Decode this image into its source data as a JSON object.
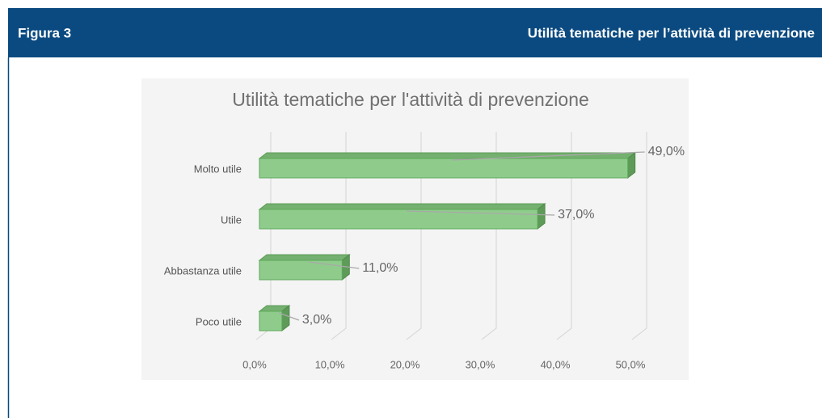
{
  "header": {
    "label": "Figura 3",
    "title": "Utilità tematiche per l’attività di prevenzione"
  },
  "chart_data": {
    "type": "bar",
    "orientation": "horizontal",
    "title": "Utilità tematiche per l'attività di prevenzione",
    "categories": [
      "Molto utile",
      "Utile",
      "Abbastanza utile",
      "Poco utile"
    ],
    "values": [
      49,
      37,
      11,
      3
    ],
    "value_labels": [
      "49,0%",
      "37,0%",
      "11,0%",
      "3,0%"
    ],
    "color": "#8fcc8c",
    "xlim": [
      0,
      50
    ],
    "xticks": [
      {
        "value": 0,
        "label": "0,0%"
      },
      {
        "value": 10,
        "label": "10,0%"
      },
      {
        "value": 20,
        "label": "20,0%"
      },
      {
        "value": 30,
        "label": "30,0%"
      },
      {
        "value": 40,
        "label": "40,0%"
      },
      {
        "value": 50,
        "label": "50,0%"
      }
    ],
    "grid": true
  }
}
